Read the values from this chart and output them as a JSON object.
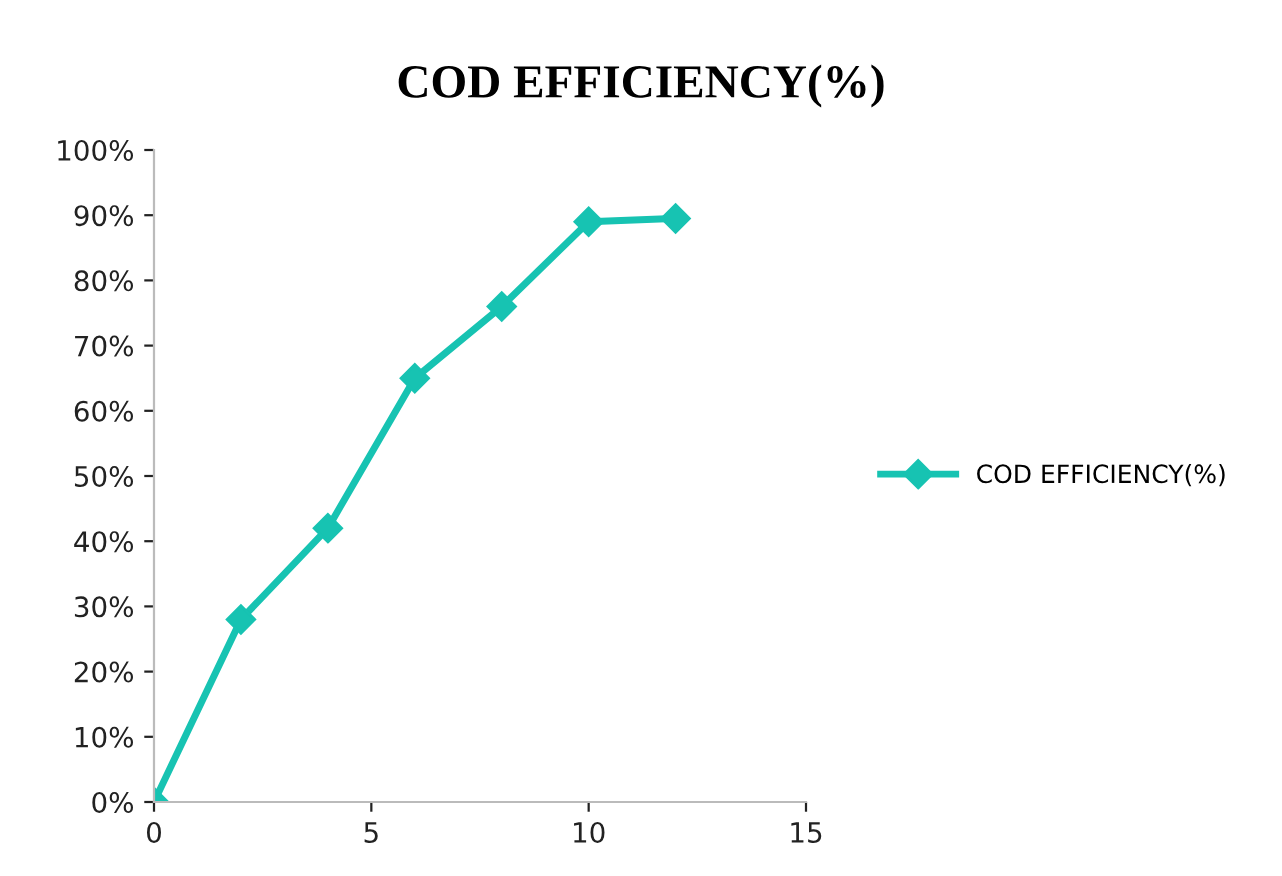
{
  "chart_data": {
    "type": "line",
    "title": "COD EFFICIENCY(%)",
    "x": [
      0,
      2,
      4,
      6,
      8,
      10,
      12
    ],
    "series": [
      {
        "name": "COD EFFICIENCY(%)",
        "color": "#17c3b2",
        "values": [
          0,
          28,
          42,
          65,
          76,
          89,
          89.5
        ]
      }
    ],
    "xlim": [
      0,
      15
    ],
    "xticks": [
      0,
      5,
      10,
      15
    ],
    "ylim": [
      0,
      100
    ],
    "yticks": [
      {
        "value": 0,
        "label": "0%"
      },
      {
        "value": 10,
        "label": "10%"
      },
      {
        "value": 20,
        "label": "20%"
      },
      {
        "value": 30,
        "label": "30%"
      },
      {
        "value": 40,
        "label": "40%"
      },
      {
        "value": 50,
        "label": "50%"
      },
      {
        "value": 60,
        "label": "60%"
      },
      {
        "value": 70,
        "label": "70%"
      },
      {
        "value": 80,
        "label": "80%"
      },
      {
        "value": 90,
        "label": "90%"
      },
      {
        "value": 100,
        "label": "100%"
      }
    ],
    "grid": false,
    "legend": "right",
    "marker": "diamond",
    "line_style": "solid"
  }
}
